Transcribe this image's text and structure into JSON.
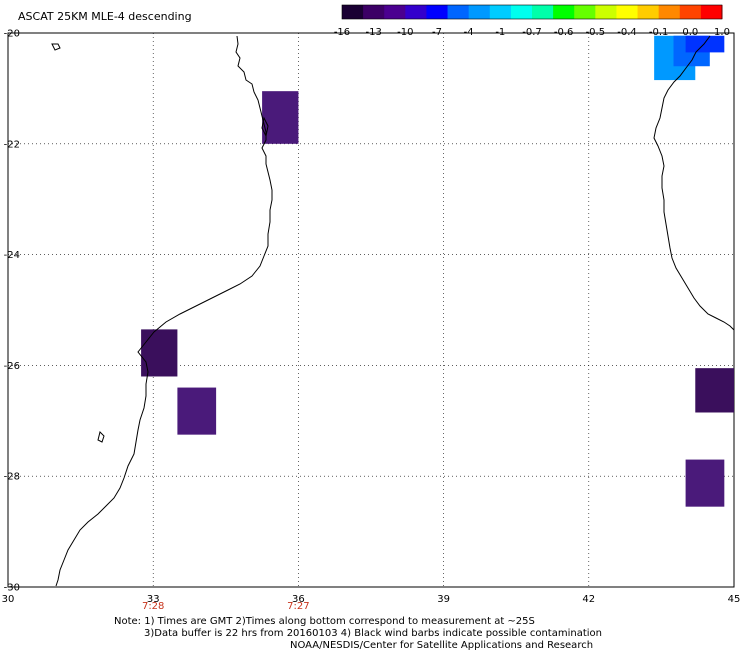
{
  "title": "ASCAT 25KM MLE-4 descending",
  "colorbar": {
    "labels": [
      "-16",
      "-13",
      "-10",
      "-7",
      "-4",
      "-1",
      "-0.7",
      "-0.6",
      "-0.5",
      "-0.4",
      "-0.1",
      "0.0",
      "1.0"
    ],
    "colors": [
      "#1a0033",
      "#3c0066",
      "#4b0090",
      "#3300cc",
      "#0000ff",
      "#0066ff",
      "#0099ff",
      "#00ccff",
      "#00ffee",
      "#00ffaa",
      "#00ff00",
      "#66ff00",
      "#ccff00",
      "#ffff00",
      "#ffcc00",
      "#ff8800",
      "#ff4400",
      "#ff0000"
    ]
  },
  "map": {
    "lon_range": [
      30,
      45
    ],
    "lat_range": [
      -30,
      -20
    ],
    "x_ticks": [
      "30",
      "33",
      "36",
      "39",
      "42",
      "45"
    ],
    "y_ticks": [
      "-20",
      "-22",
      "-24",
      "-26",
      "-28",
      "-30"
    ],
    "grid": true
  },
  "time_labels": [
    {
      "lon": 33,
      "text": "7:28"
    },
    {
      "lon": 36,
      "text": "7:27"
    }
  ],
  "cells": [
    {
      "lon": [
        35.25,
        36.0
      ],
      "lat": [
        -22.0,
        -21.05
      ],
      "color": "#4a1a7a"
    },
    {
      "lon": [
        32.75,
        33.5
      ],
      "lat": [
        -26.2,
        -25.35
      ],
      "color": "#3a0f5c"
    },
    {
      "lon": [
        33.5,
        34.3
      ],
      "lat": [
        -27.25,
        -26.4
      ],
      "color": "#4a1a7a"
    },
    {
      "lon": [
        44.2,
        45.0
      ],
      "lat": [
        -26.85,
        -26.05
      ],
      "color": "#3a0f5c"
    },
    {
      "lon": [
        44.0,
        44.8
      ],
      "lat": [
        -28.55,
        -27.7
      ],
      "color": "#4a1a7a"
    },
    {
      "lon": [
        43.35,
        44.2
      ],
      "lat": [
        -20.85,
        -20.05
      ],
      "color": "#0099ff"
    },
    {
      "lon": [
        43.75,
        44.5
      ],
      "lat": [
        -20.6,
        -20.05
      ],
      "color": "#0066ff"
    },
    {
      "lon": [
        44.0,
        44.8
      ],
      "lat": [
        -20.35,
        -20.05
      ],
      "color": "#0033ff"
    }
  ],
  "notes": {
    "line1": "Note: 1) Times are GMT 2)Times along bottom correspond to measurement at ~25S",
    "line2": "3)Data buffer is 22 hrs from 20160103 4) Black wind barbs indicate possible contamination",
    "line3": "NOAA/NESDIS/Center for Satellite Applications and Research"
  }
}
